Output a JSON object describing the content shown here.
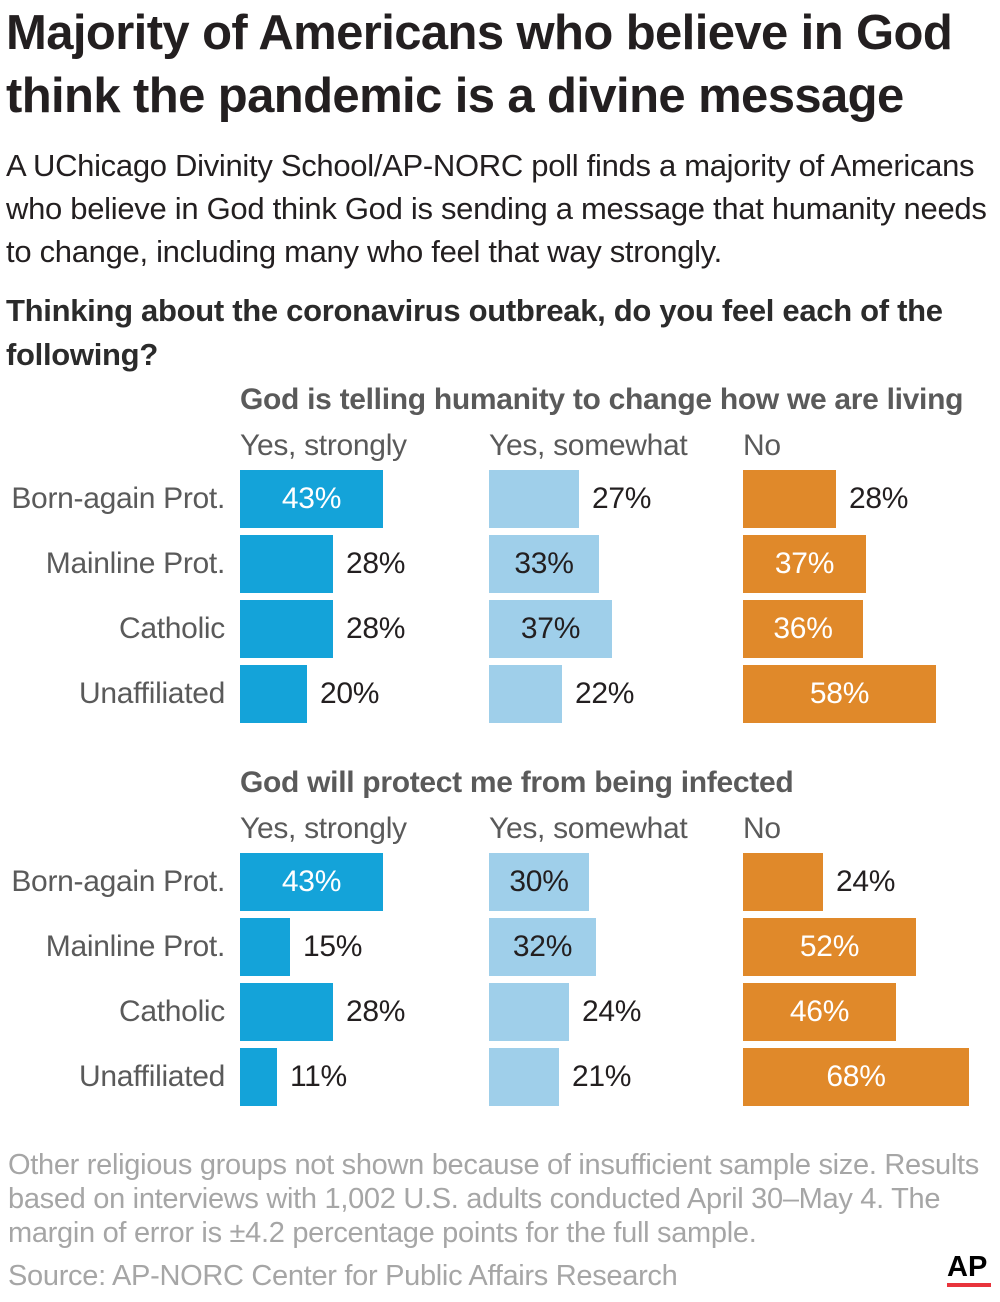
{
  "title": "Majority of Americans who believe in God think the pandemic is a divine message",
  "subtitle": "A UChicago Divinity School/AP-NORC poll finds a majority of Americans who believe in God think God is sending a message that humanity needs to change, including many who feel that way strongly.",
  "question": "Thinking about the coronavirus outbreak, do you feel each of the following?",
  "colors": {
    "yes_strongly": "#14a3d9",
    "yes_somewhat": "#9fcfea",
    "no": "#e0892a",
    "text_dark": "#231f20",
    "label_gray": "#5a5a5a",
    "footer_gray": "#a6a6a6",
    "logo_red": "#e8343c"
  },
  "chart_data": [
    {
      "type": "bar",
      "title": "God is telling humanity to change how we are living",
      "categories": [
        "Born-again Prot.",
        "Mainline Prot.",
        "Catholic",
        "Unaffiliated"
      ],
      "series": [
        {
          "name": "Yes, strongly",
          "values": [
            43,
            28,
            28,
            20
          ],
          "labels": [
            "43%",
            "28%",
            "28%",
            "20%"
          ]
        },
        {
          "name": "Yes, somewhat",
          "values": [
            27,
            33,
            37,
            22
          ],
          "labels": [
            "27%",
            "33%",
            "37%",
            "22%"
          ]
        },
        {
          "name": "No",
          "values": [
            28,
            37,
            36,
            58
          ],
          "labels": [
            "28%",
            "37%",
            "36%",
            "58%"
          ]
        }
      ],
      "unit": "%"
    },
    {
      "type": "bar",
      "title": "God will protect me from being infected",
      "categories": [
        "Born-again Prot.",
        "Mainline Prot.",
        "Catholic",
        "Unaffiliated"
      ],
      "series": [
        {
          "name": "Yes, strongly",
          "values": [
            43,
            15,
            28,
            11
          ],
          "labels": [
            "43%",
            "15%",
            "28%",
            "11%"
          ]
        },
        {
          "name": "Yes, somewhat",
          "values": [
            30,
            32,
            24,
            21
          ],
          "labels": [
            "30%",
            "32%",
            "24%",
            "21%"
          ]
        },
        {
          "name": "No",
          "values": [
            24,
            52,
            46,
            68
          ],
          "labels": [
            "24%",
            "52%",
            "46%",
            "68%"
          ]
        }
      ],
      "unit": "%"
    }
  ],
  "footnote": "Other religious groups not shown because of insufficient sample size. Results based on interviews with 1,002 U.S. adults conducted April 30–May 4. The margin of error is ±4.2 percentage points for the full sample.",
  "source": "Source: AP-NORC Center for Public Affairs Research",
  "logo": {
    "text": "AP",
    "icon": "ap-logo-icon"
  }
}
